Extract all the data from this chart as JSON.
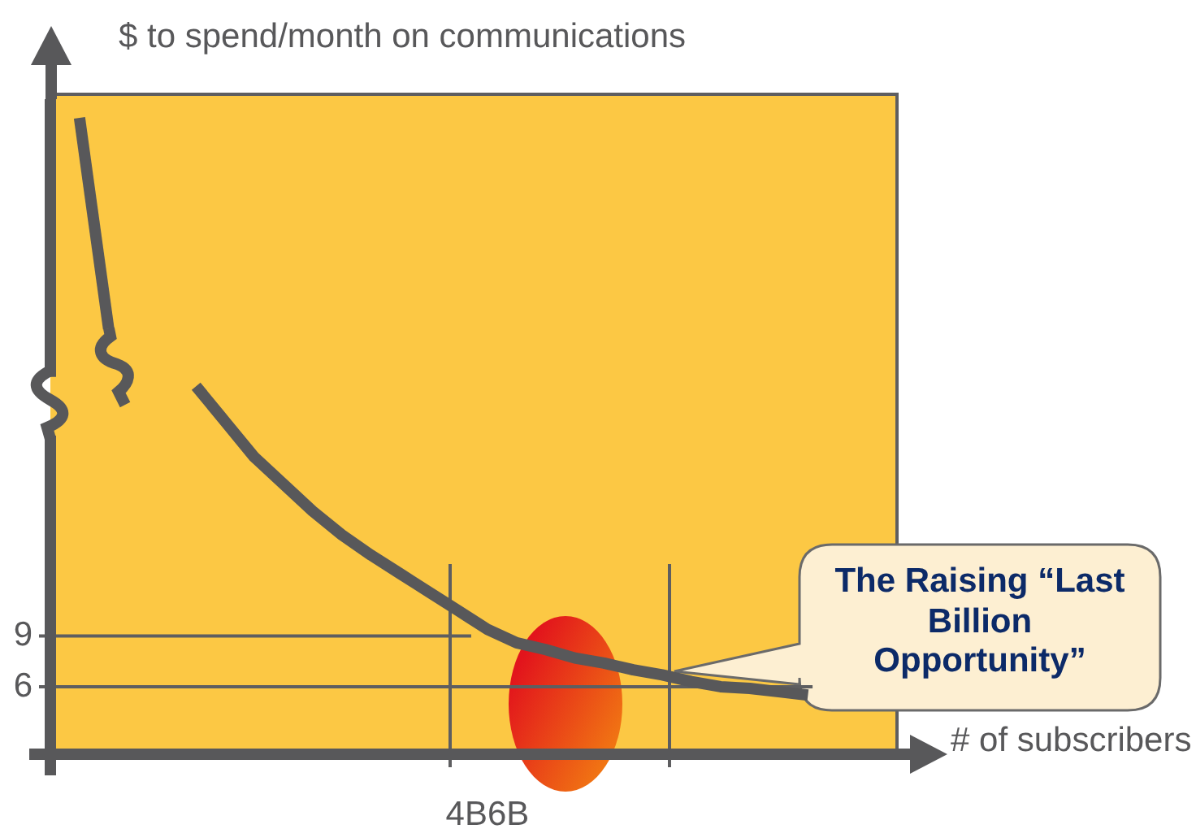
{
  "chart_data": {
    "type": "line",
    "xlabel": "# of subscribers",
    "ylabel": "$ to spend/month on communications",
    "categories": [
      null,
      null,
      null,
      null,
      null,
      null,
      null,
      null,
      null,
      null,
      null,
      null,
      null,
      null,
      null,
      "4B6B",
      null,
      null,
      null,
      null,
      null,
      null,
      null,
      null,
      null,
      null,
      null,
      null,
      null,
      null
    ],
    "series": [
      {
        "color": "#58585a",
        "values": [
          null,
          39.7,
          27.2,
          null,
          null,
          null,
          null,
          null,
          null,
          null,
          null,
          null,
          null,
          null,
          null,
          null,
          null,
          null,
          null,
          null,
          null,
          null,
          null,
          null,
          null,
          null,
          null,
          null,
          null,
          null
        ]
      },
      {
        "color": "#58585a",
        "values": [
          null,
          null,
          null,
          null,
          null,
          23.8,
          21.7,
          19.6,
          18.0,
          16.4,
          15.0,
          13.8,
          12.7,
          11.6,
          10.5,
          9.4,
          8.6,
          8.2,
          7.7,
          7.4,
          7.0,
          6.7,
          6.3,
          6.0,
          5.9,
          5.7,
          5.5,
          null,
          null,
          null
        ]
      }
    ],
    "ylim": [
      2,
      41
    ],
    "yticks": [
      6,
      9
    ],
    "ref_lines": [
      {
        "axis": "y",
        "value": 9
      },
      {
        "axis": "y",
        "value": 6
      }
    ],
    "annotations": [
      "The Raising “Last Billion Opportunity”"
    ]
  }
}
